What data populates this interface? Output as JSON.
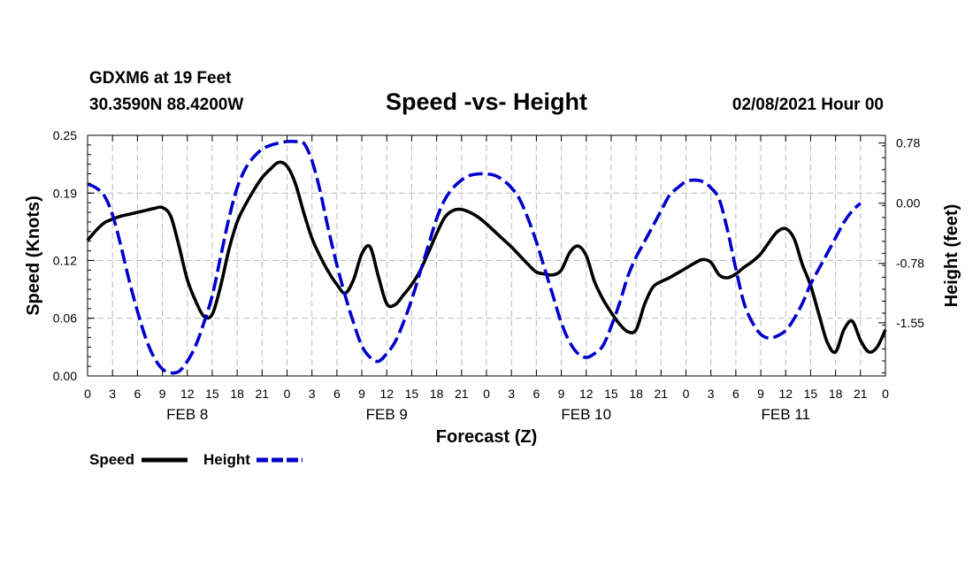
{
  "header": {
    "station": "GDXM6 at 19 Feet",
    "coords": "30.3590N 88.4200W",
    "title": "Speed -vs- Height",
    "datetime": "02/08/2021 Hour 00"
  },
  "colors": {
    "speed": "#000000",
    "height": "#0000cc",
    "grid": "#bbbbbb"
  },
  "chart_data": {
    "type": "line",
    "title": "Speed -vs- Height",
    "xlabel": "Forecast (Z)",
    "ylabel_left": "Speed (Knots)",
    "ylabel_right": "Height (feet)",
    "x_unit": "forecast hour from 02/08/2021 00Z",
    "xlim": [
      0,
      96
    ],
    "ylim_left": [
      0,
      0.25
    ],
    "ylim_right": [
      -2.24,
      0.88
    ],
    "x_ticks": [
      0,
      3,
      6,
      9,
      12,
      15,
      18,
      21,
      24,
      27,
      30,
      33,
      36,
      39,
      42,
      45,
      48,
      51,
      54,
      57,
      60,
      63,
      66,
      69,
      72,
      75,
      78,
      81,
      84,
      87,
      90,
      93,
      96
    ],
    "x_tick_labels": [
      "0",
      "3",
      "6",
      "9",
      "12",
      "15",
      "18",
      "21",
      "0",
      "3",
      "6",
      "9",
      "12",
      "15",
      "18",
      "21",
      "0",
      "3",
      "6",
      "9",
      "12",
      "15",
      "18",
      "21",
      "0",
      "3",
      "6",
      "9",
      "12",
      "15",
      "18",
      "21",
      "0"
    ],
    "day_labels": [
      {
        "label": "FEB 8",
        "hour": 12
      },
      {
        "label": "FEB 9",
        "hour": 36
      },
      {
        "label": "FEB 10",
        "hour": 60
      },
      {
        "label": "FEB 11",
        "hour": 84
      }
    ],
    "y_ticks_left": [
      0.0,
      0.06,
      0.12,
      0.19,
      0.25
    ],
    "y_tick_labels_left": [
      "0.00",
      "0.06",
      "0.12",
      "0.19",
      "0.25"
    ],
    "y_ticks_right": [
      0.78,
      0.0,
      -0.78,
      -1.55
    ],
    "y_tick_labels_right": [
      "0.78",
      "0.00",
      "-0.78",
      "-1.55"
    ],
    "grid": true,
    "legend": "bottom-left",
    "series": [
      {
        "name": "Speed",
        "axis": "left",
        "style": "solid",
        "points": [
          [
            0,
            0.141
          ],
          [
            1,
            0.151
          ],
          [
            2,
            0.159
          ],
          [
            3,
            0.163
          ],
          [
            4,
            0.166
          ],
          [
            5,
            0.168
          ],
          [
            6,
            0.17
          ],
          [
            7,
            0.172
          ],
          [
            8,
            0.174
          ],
          [
            9,
            0.175
          ],
          [
            10,
            0.166
          ],
          [
            11,
            0.135
          ],
          [
            12,
            0.1
          ],
          [
            13,
            0.078
          ],
          [
            14,
            0.062
          ],
          [
            15,
            0.064
          ],
          [
            16,
            0.093
          ],
          [
            17,
            0.131
          ],
          [
            18,
            0.16
          ],
          [
            19,
            0.178
          ],
          [
            20,
            0.193
          ],
          [
            21,
            0.206
          ],
          [
            22,
            0.215
          ],
          [
            23,
            0.222
          ],
          [
            24,
            0.218
          ],
          [
            25,
            0.2
          ],
          [
            26,
            0.17
          ],
          [
            27,
            0.143
          ],
          [
            28,
            0.124
          ],
          [
            29,
            0.108
          ],
          [
            30,
            0.095
          ],
          [
            31,
            0.086
          ],
          [
            32,
            0.1
          ],
          [
            33,
            0.127
          ],
          [
            34,
            0.134
          ],
          [
            35,
            0.103
          ],
          [
            36,
            0.075
          ],
          [
            37,
            0.074
          ],
          [
            38,
            0.084
          ],
          [
            39,
            0.095
          ],
          [
            40,
            0.109
          ],
          [
            41,
            0.128
          ],
          [
            42,
            0.148
          ],
          [
            43,
            0.165
          ],
          [
            44,
            0.172
          ],
          [
            45,
            0.173
          ],
          [
            46,
            0.17
          ],
          [
            47,
            0.165
          ],
          [
            48,
            0.158
          ],
          [
            49,
            0.15
          ],
          [
            50,
            0.142
          ],
          [
            51,
            0.134
          ],
          [
            52,
            0.125
          ],
          [
            53,
            0.116
          ],
          [
            54,
            0.108
          ],
          [
            55,
            0.106
          ],
          [
            56,
            0.105
          ],
          [
            57,
            0.11
          ],
          [
            58,
            0.128
          ],
          [
            59,
            0.135
          ],
          [
            60,
            0.125
          ],
          [
            61,
            0.098
          ],
          [
            62,
            0.08
          ],
          [
            63,
            0.066
          ],
          [
            64,
            0.054
          ],
          [
            65,
            0.046
          ],
          [
            66,
            0.048
          ],
          [
            67,
            0.074
          ],
          [
            68,
            0.092
          ],
          [
            69,
            0.098
          ],
          [
            70,
            0.102
          ],
          [
            71,
            0.107
          ],
          [
            72,
            0.112
          ],
          [
            73,
            0.117
          ],
          [
            74,
            0.121
          ],
          [
            75,
            0.118
          ],
          [
            76,
            0.105
          ],
          [
            77,
            0.102
          ],
          [
            78,
            0.106
          ],
          [
            79,
            0.113
          ],
          [
            80,
            0.119
          ],
          [
            81,
            0.127
          ],
          [
            82,
            0.139
          ],
          [
            83,
            0.15
          ],
          [
            84,
            0.153
          ],
          [
            85,
            0.143
          ],
          [
            86,
            0.116
          ],
          [
            87,
            0.094
          ],
          [
            88,
            0.064
          ],
          [
            89,
            0.035
          ],
          [
            90,
            0.025
          ],
          [
            91,
            0.048
          ],
          [
            92,
            0.057
          ],
          [
            93,
            0.037
          ],
          [
            94,
            0.025
          ],
          [
            95,
            0.03
          ],
          [
            96,
            0.048
          ]
        ]
      },
      {
        "name": "Height",
        "axis": "right",
        "style": "dashed",
        "points": [
          [
            0,
            0.25
          ],
          [
            1,
            0.2
          ],
          [
            2,
            0.1
          ],
          [
            3,
            -0.15
          ],
          [
            4,
            -0.55
          ],
          [
            5,
            -1.0
          ],
          [
            6,
            -1.4
          ],
          [
            7,
            -1.75
          ],
          [
            8,
            -2.0
          ],
          [
            9,
            -2.15
          ],
          [
            10,
            -2.2
          ],
          [
            11,
            -2.18
          ],
          [
            12,
            -2.05
          ],
          [
            13,
            -1.85
          ],
          [
            14,
            -1.55
          ],
          [
            15,
            -1.2
          ],
          [
            16,
            -0.7
          ],
          [
            17,
            -0.2
          ],
          [
            18,
            0.2
          ],
          [
            19,
            0.45
          ],
          [
            20,
            0.6
          ],
          [
            21,
            0.7
          ],
          [
            22,
            0.75
          ],
          [
            23,
            0.78
          ],
          [
            24,
            0.8
          ],
          [
            25,
            0.8
          ],
          [
            26,
            0.78
          ],
          [
            27,
            0.55
          ],
          [
            28,
            0.15
          ],
          [
            29,
            -0.35
          ],
          [
            30,
            -0.8
          ],
          [
            31,
            -1.2
          ],
          [
            32,
            -1.55
          ],
          [
            33,
            -1.85
          ],
          [
            34,
            -2.0
          ],
          [
            35,
            -2.05
          ],
          [
            36,
            -1.95
          ],
          [
            37,
            -1.8
          ],
          [
            38,
            -1.55
          ],
          [
            39,
            -1.25
          ],
          [
            40,
            -0.9
          ],
          [
            41,
            -0.55
          ],
          [
            42,
            -0.2
          ],
          [
            43,
            0.05
          ],
          [
            44,
            0.2
          ],
          [
            45,
            0.3
          ],
          [
            46,
            0.36
          ],
          [
            47,
            0.38
          ],
          [
            48,
            0.38
          ],
          [
            49,
            0.36
          ],
          [
            50,
            0.3
          ],
          [
            51,
            0.2
          ],
          [
            52,
            0.05
          ],
          [
            53,
            -0.2
          ],
          [
            54,
            -0.5
          ],
          [
            55,
            -0.85
          ],
          [
            56,
            -1.2
          ],
          [
            57,
            -1.55
          ],
          [
            58,
            -1.8
          ],
          [
            59,
            -1.95
          ],
          [
            60,
            -2.0
          ],
          [
            61,
            -1.95
          ],
          [
            62,
            -1.85
          ],
          [
            63,
            -1.6
          ],
          [
            64,
            -1.3
          ],
          [
            65,
            -0.95
          ],
          [
            66,
            -0.7
          ],
          [
            67,
            -0.5
          ],
          [
            68,
            -0.3
          ],
          [
            69,
            -0.1
          ],
          [
            70,
            0.1
          ],
          [
            71,
            0.2
          ],
          [
            72,
            0.28
          ],
          [
            73,
            0.3
          ],
          [
            74,
            0.28
          ],
          [
            75,
            0.2
          ],
          [
            76,
            0.05
          ],
          [
            77,
            -0.35
          ],
          [
            78,
            -0.85
          ],
          [
            79,
            -1.3
          ],
          [
            80,
            -1.55
          ],
          [
            81,
            -1.7
          ],
          [
            82,
            -1.75
          ],
          [
            83,
            -1.72
          ],
          [
            84,
            -1.65
          ],
          [
            85,
            -1.5
          ],
          [
            86,
            -1.3
          ],
          [
            87,
            -1.05
          ],
          [
            88,
            -0.85
          ],
          [
            89,
            -0.65
          ],
          [
            90,
            -0.45
          ],
          [
            91,
            -0.25
          ],
          [
            92,
            -0.1
          ],
          [
            93,
            0.0
          ]
        ]
      }
    ]
  }
}
